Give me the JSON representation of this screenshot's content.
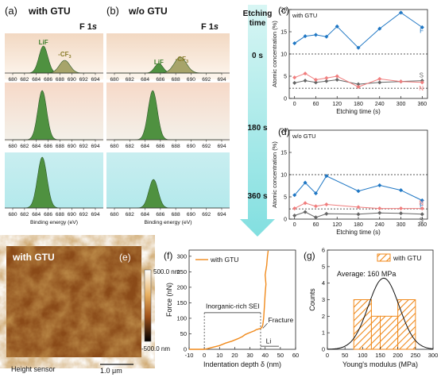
{
  "panels": {
    "a": {
      "label": "(a)",
      "title": "with GTU",
      "orbital_prefix": "F 1",
      "orbital_suffix": "s"
    },
    "b": {
      "label": "(b)",
      "title": "w/o GTU",
      "orbital_prefix": "F 1",
      "orbital_suffix": "s"
    },
    "arrow": {
      "label_line1": "Etching",
      "label_line2": "time",
      "times": [
        "0 s",
        "180 s",
        "360 s"
      ]
    },
    "xps_axis": {
      "ticks": [
        "680",
        "682",
        "684",
        "686",
        "688",
        "690",
        "692",
        "694"
      ],
      "xlabel": "Binding energy (eV)"
    },
    "peak_labels": {
      "lif": "LiF",
      "cf3_main": "-CF",
      "cf3_sub": "3"
    },
    "c": {
      "label": "(c)",
      "inset": "with GTU"
    },
    "d": {
      "label": "(d)",
      "inset": "w/o GTU"
    },
    "e": {
      "label": "(e)",
      "title": "with GTU",
      "scale_top": "500.0 nm",
      "scale_bottom": "-500.0 nm",
      "caption": "Height sensor",
      "scalebar": "1.0 μm"
    },
    "f": {
      "label": "(f)",
      "annotations": {
        "sei": "Inorganic-rich SEI",
        "fracture": "Fracture",
        "li": "Li"
      }
    },
    "g": {
      "label": "(g)",
      "annotation": "Average: 160 MPa"
    }
  },
  "colors": {
    "F": "#1f77c4",
    "S": "#666666",
    "N": "#f07d7d",
    "xps_fill": "#4f9140",
    "cf3_fill": "#a7a46a",
    "arrow": "#a8ecea",
    "force": "#f08a1c",
    "hist": "#f08a1c"
  },
  "chart_data": [
    {
      "id": "c",
      "type": "line",
      "x": [
        0,
        30,
        60,
        90,
        120,
        180,
        240,
        300,
        360
      ],
      "series": [
        {
          "name": "F",
          "values": [
            12.4,
            14.0,
            14.3,
            13.9,
            16.2,
            11.4,
            15.7,
            19.3,
            16.0
          ]
        },
        {
          "name": "S",
          "values": [
            3.5,
            4.0,
            3.6,
            3.9,
            4.2,
            3.2,
            3.6,
            3.8,
            4.0
          ]
        },
        {
          "name": "N",
          "values": [
            4.7,
            5.6,
            4.2,
            4.6,
            5.0,
            2.6,
            4.4,
            3.8,
            3.6
          ]
        }
      ],
      "ref_lines": [
        10,
        2.3
      ],
      "xticks": [
        0,
        60,
        120,
        180,
        240,
        300,
        360
      ],
      "yticks": [
        0,
        5,
        10,
        15,
        20
      ],
      "xlim": [
        -15,
        375
      ],
      "ylim": [
        0,
        20
      ],
      "xlabel": "Etching time (s)",
      "ylabel": "Atomic concentration (%)"
    },
    {
      "id": "d",
      "type": "line",
      "x": [
        0,
        30,
        60,
        90,
        180,
        240,
        300,
        360
      ],
      "series": [
        {
          "name": "F",
          "values": [
            5.4,
            8.2,
            5.8,
            9.7,
            6.3,
            7.6,
            6.5,
            4.2
          ]
        },
        {
          "name": "N",
          "values": [
            2.4,
            3.6,
            2.9,
            3.3,
            2.7,
            2.4,
            2.4,
            2.4
          ]
        },
        {
          "name": "S",
          "values": [
            0.8,
            1.6,
            0.4,
            1.2,
            1.1,
            1.4,
            1.3,
            1.1
          ]
        }
      ],
      "ref_lines": [
        10,
        2.3
      ],
      "xticks": [
        0,
        60,
        120,
        180,
        240,
        300,
        360
      ],
      "yticks": [
        0,
        5,
        10,
        15,
        20
      ],
      "xlim": [
        -15,
        375
      ],
      "ylim": [
        0,
        20
      ],
      "xlabel": "Etching time (s)",
      "ylabel": "Atomic concentration (%)"
    },
    {
      "id": "f",
      "type": "line",
      "series": [
        {
          "name": "with GTU",
          "points": [
            [
              -10,
              0
            ],
            [
              0,
              0
            ],
            [
              2,
              2
            ],
            [
              5,
              6
            ],
            [
              10,
              12
            ],
            [
              14,
              20
            ],
            [
              18,
              26
            ],
            [
              22,
              34
            ],
            [
              25,
              41
            ],
            [
              27,
              48
            ],
            [
              30,
              54
            ],
            [
              33,
              60
            ],
            [
              34,
              63
            ],
            [
              36,
              66
            ],
            [
              37,
              67
            ],
            [
              38,
              72
            ],
            [
              38.5,
              80
            ],
            [
              39,
              100
            ],
            [
              39.5,
              140
            ],
            [
              40,
              180
            ],
            [
              40.5,
              210
            ],
            [
              40,
              240
            ],
            [
              41,
              270
            ],
            [
              41.5,
              300
            ],
            [
              42,
              318
            ]
          ]
        }
      ],
      "ref_lines_x": [
        0,
        37
      ],
      "xticks": [
        -10,
        0,
        10,
        20,
        30,
        40,
        50,
        60
      ],
      "yticks": [
        0,
        50,
        100,
        150,
        200,
        250,
        300
      ],
      "xlim": [
        -10,
        60
      ],
      "ylim": [
        0,
        320
      ],
      "xlabel": "Indentation depth δ (nm)",
      "ylabel": "Force (nN)"
    },
    {
      "id": "g",
      "type": "bar",
      "bins": [
        [
          75,
          125,
          3
        ],
        [
          125,
          150,
          2
        ],
        [
          150,
          200,
          2
        ],
        [
          200,
          250,
          3
        ]
      ],
      "fit": {
        "mean": 160,
        "sd": 44,
        "peak": 4.3
      },
      "series_name": "with GTU",
      "xticks": [
        0,
        50,
        100,
        150,
        200,
        250,
        300
      ],
      "yticks": [
        0,
        1,
        2,
        3,
        4,
        5,
        6
      ],
      "xlim": [
        0,
        300
      ],
      "ylim": [
        0,
        6
      ],
      "xlabel": "Young's modulus (MPa)",
      "ylabel": "Counts"
    }
  ]
}
